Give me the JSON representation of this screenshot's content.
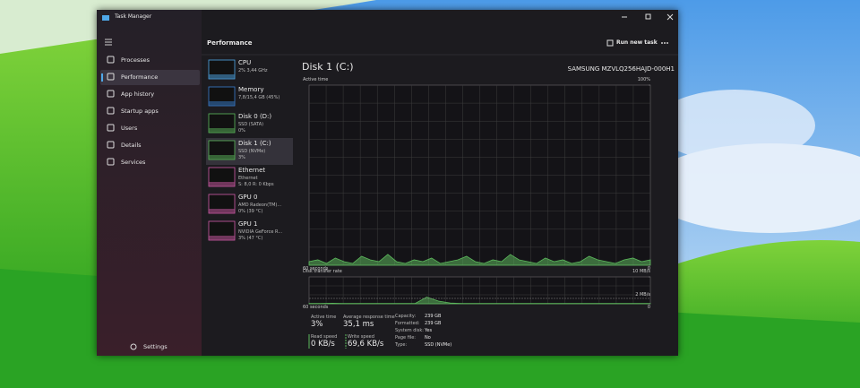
{
  "window": {
    "title": "Task Manager"
  },
  "nav": {
    "items": [
      "Processes",
      "Performance",
      "App history",
      "Startup apps",
      "Users",
      "Details",
      "Services"
    ],
    "selected": 1,
    "settings": "Settings"
  },
  "header": {
    "title": "Performance",
    "action": "Run new task"
  },
  "devices": [
    {
      "name": "CPU",
      "lines": [
        "2% 3,44 GHz"
      ],
      "color": "#4fa8e8"
    },
    {
      "name": "Memory",
      "lines": [
        "7,8/15,4 GB (45%)"
      ],
      "color": "#3a7fd0"
    },
    {
      "name": "Disk 0 (D:)",
      "lines": [
        "SSD (SATA)",
        "0%"
      ],
      "color": "#5cb85c"
    },
    {
      "name": "Disk 1 (C:)",
      "lines": [
        "SSD (NVMe)",
        "3%"
      ],
      "color": "#5cb85c"
    },
    {
      "name": "Ethernet",
      "lines": [
        "Ethernet",
        "S: 8,0 R: 0 Kbps"
      ],
      "color": "#d05ca8"
    },
    {
      "name": "GPU 0",
      "lines": [
        "AMD Radeon(TM)...",
        "0% (39 °C)"
      ],
      "color": "#d05ca8"
    },
    {
      "name": "GPU 1",
      "lines": [
        "NVIDIA GeForce R...",
        "3% (47 °C)"
      ],
      "color": "#d05ca8"
    }
  ],
  "selected_device": 3,
  "detail": {
    "title": "Disk 1 (C:)",
    "model": "SAMSUNG MZVLQ256HAJD-000H1"
  },
  "active_time_graph": {
    "label": "Active time",
    "xlabel": "60 seconds",
    "ylim": [
      0,
      100
    ],
    "yticks": [
      {
        "value": 100,
        "label": "100%"
      },
      0
    ],
    "color": "#5cb85c",
    "values": [
      2,
      3,
      1,
      4,
      2,
      1,
      5,
      3,
      2,
      6,
      2,
      1,
      3,
      2,
      4,
      1,
      2,
      3,
      5,
      2,
      1,
      3,
      2,
      6,
      3,
      2,
      1,
      4,
      2,
      3,
      1,
      2,
      5,
      3,
      2,
      1,
      3,
      4,
      2,
      3
    ]
  },
  "transfer_graph": {
    "label": "Disk transfer rate",
    "xlabel": "60 seconds",
    "ylim": [
      0,
      10
    ],
    "yticks": [
      {
        "value": 10,
        "label": "10 MB/s"
      },
      {
        "value": 2,
        "label": "2 MB/s"
      },
      0
    ],
    "color": "#5cb85c",
    "values": [
      0.1,
      0.1,
      0.2,
      0.1,
      0.1,
      0.1,
      0.1,
      0.1,
      0.1,
      0.1,
      2.5,
      1.0,
      0.3,
      0.1,
      0.1,
      0.1,
      0.1,
      0.1,
      0.1,
      0.1,
      0.1,
      0.1,
      0.1,
      0.1,
      0.1,
      0.1,
      0.1,
      0.1,
      0.1,
      0.1
    ]
  },
  "stats": [
    {
      "label": "Active time",
      "value": "3%"
    },
    {
      "label": "Average response time",
      "value": "35,1 ms"
    },
    {
      "label": "Read speed",
      "value": "0 KB/s"
    },
    {
      "label": "Write speed",
      "value": "69,6 KB/s"
    }
  ],
  "properties": [
    [
      "Capacity:",
      "239 GB"
    ],
    [
      "Formatted:",
      "239 GB"
    ],
    [
      "System disk:",
      "Yes"
    ],
    [
      "Page file:",
      "No"
    ],
    [
      "Type:",
      "SSD (NVMe)"
    ]
  ]
}
